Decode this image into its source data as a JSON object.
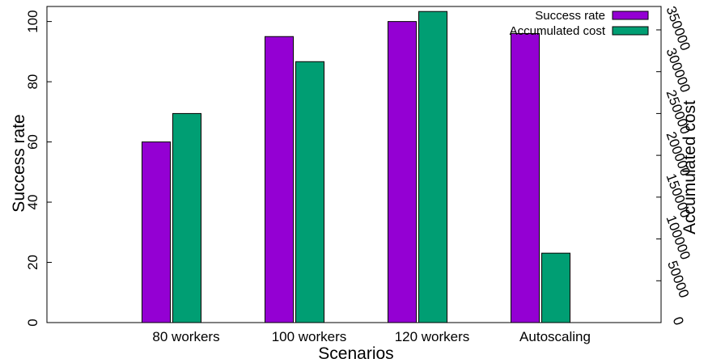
{
  "chart_data": {
    "type": "bar",
    "title": "",
    "xlabel": "Scenarios",
    "ylabel": "Success rate",
    "y2label": "Accumulated cost",
    "categories": [
      "80 workers",
      "100 workers",
      "120 workers",
      "Autoscaling"
    ],
    "series": [
      {
        "name": "Success rate",
        "axis": "left",
        "color": "#9400d3",
        "values": [
          60,
          95,
          100,
          96
        ]
      },
      {
        "name": "Accumulated cost",
        "axis": "right",
        "color": "#009e73",
        "values": [
          250000,
          312000,
          372000,
          83000
        ]
      }
    ],
    "ylim": [
      0,
      105
    ],
    "y2lim": [
      0,
      378000
    ],
    "yticks": [
      "0",
      "20",
      "40",
      "60",
      "80",
      "100"
    ],
    "y2ticks": [
      "0",
      "50000",
      "100000",
      "150000",
      "200000",
      "250000",
      "300000",
      "350000"
    ],
    "legend": "top-right",
    "grid": false
  }
}
